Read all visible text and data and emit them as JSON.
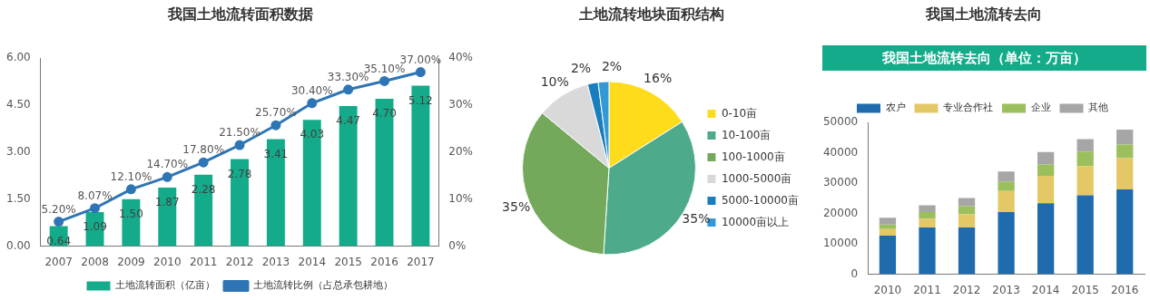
{
  "chart_data": [
    {
      "type": "bar",
      "title": "我国土地流转面积数据",
      "categories": [
        "2007",
        "2008",
        "2009",
        "2010",
        "2011",
        "2012",
        "2013",
        "2014",
        "2015",
        "2016",
        "2017"
      ],
      "series": [
        {
          "name": "土地流转面积（亿亩）",
          "color": "#13ab8a",
          "values": [
            0.64,
            1.09,
            1.5,
            1.87,
            2.28,
            2.78,
            3.41,
            4.03,
            4.47,
            4.7,
            5.12
          ],
          "value_labels": [
            "0.64",
            "1.09",
            "1.50",
            "1.87",
            "2.28",
            "2.78",
            "3.41",
            "4.03",
            "4.47",
            "4.70",
            "5.12"
          ]
        },
        {
          "name": "土地流转比例（占总承包耕地）",
          "type": "line",
          "axis": "y2",
          "color": "#2e75b6",
          "values": [
            5.2,
            8.07,
            12.1,
            14.7,
            17.8,
            21.5,
            25.7,
            30.4,
            33.3,
            35.1,
            37.0
          ],
          "value_labels": [
            "5.20%",
            "8.07%",
            "12.10%",
            "14.70%",
            "17.80%",
            "21.50%",
            "25.70%",
            "30.40%",
            "33.30%",
            "35.10%",
            "37.00%"
          ]
        }
      ],
      "ylim": [
        0,
        6
      ],
      "yticks": [
        {
          "value": 0,
          "label": "0.00"
        },
        {
          "value": 1.5,
          "label": "1.50"
        },
        {
          "value": 3,
          "label": "3.00"
        },
        {
          "value": 4.5,
          "label": "4.50"
        },
        {
          "value": 6,
          "label": "6.00"
        }
      ],
      "y2lim": [
        0,
        40
      ],
      "y2ticks": [
        {
          "value": 0,
          "label": "0%"
        },
        {
          "value": 10,
          "label": "10%"
        },
        {
          "value": 20,
          "label": "20%"
        },
        {
          "value": 30,
          "label": "30%"
        },
        {
          "value": 40,
          "label": "40%"
        }
      ],
      "marker": "circle",
      "legend": "bottom"
    },
    {
      "type": "pie",
      "title": "土地流转地块面积结构",
      "categories": [
        "0-10亩",
        "10-100亩",
        "100-1000亩",
        "1000-5000亩",
        "5000-10000亩",
        "10000亩以上"
      ],
      "values": [
        16,
        35,
        35,
        10,
        2,
        2
      ],
      "colors": [
        "#fedc1c",
        "#4daa8a",
        "#74a85a",
        "#d9d9d9",
        "#1a7dbd",
        "#3299d6"
      ],
      "value_labels": [
        "16%",
        "35%",
        "35%",
        "10%",
        "2%",
        "2%"
      ],
      "legend": "right"
    },
    {
      "type": "bar",
      "title": "我国土地流转去向",
      "subtitle": "我国土地流转去向（单位：万亩）",
      "categories": [
        "2010",
        "2011",
        "2012",
        "2013",
        "2014",
        "2015",
        "2016"
      ],
      "stacked": true,
      "series": [
        {
          "name": "农户",
          "color": "#1f6bad",
          "values": [
            12700,
            15400,
            15400,
            20500,
            23400,
            26000,
            27900
          ]
        },
        {
          "name": "专业合作社",
          "color": "#e5c866",
          "values": [
            2200,
            2800,
            4300,
            6900,
            9000,
            9600,
            10300
          ]
        },
        {
          "name": "企业",
          "color": "#9bbf5c",
          "values": [
            1500,
            2300,
            2700,
            3100,
            3700,
            4800,
            4500
          ]
        },
        {
          "name": "其他",
          "color": "#a6a6a6",
          "values": [
            2200,
            2200,
            2700,
            3300,
            4100,
            4100,
            4900
          ]
        }
      ],
      "ylim": [
        0,
        50000
      ],
      "yticks": [
        0,
        10000,
        20000,
        30000,
        40000,
        50000
      ],
      "legend": "top"
    }
  ]
}
